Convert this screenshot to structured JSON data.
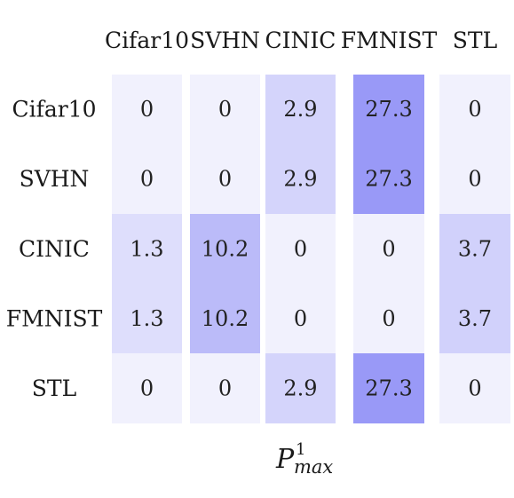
{
  "chart_data": {
    "type": "heatmap",
    "title": {
      "base": "P",
      "superscript": "1",
      "subscript": "max"
    },
    "columns": [
      "Cifar10",
      "SVHN",
      "CINIC",
      "FMNIST",
      "STL"
    ],
    "rows": [
      "Cifar10",
      "SVHN",
      "CINIC",
      "FMNIST",
      "STL"
    ],
    "values": [
      [
        "0",
        "0",
        "2.9",
        "27.3",
        "0"
      ],
      [
        "0",
        "0",
        "2.9",
        "27.3",
        "0"
      ],
      [
        "1.3",
        "10.2",
        "0",
        "0",
        "3.7"
      ],
      [
        "1.3",
        "10.2",
        "0",
        "0",
        "3.7"
      ],
      [
        "0",
        "0",
        "2.9",
        "27.3",
        "0"
      ]
    ],
    "color_low": "#f1f1fd",
    "color_high": "#9999f7",
    "value_range": [
      0,
      27.3
    ]
  }
}
